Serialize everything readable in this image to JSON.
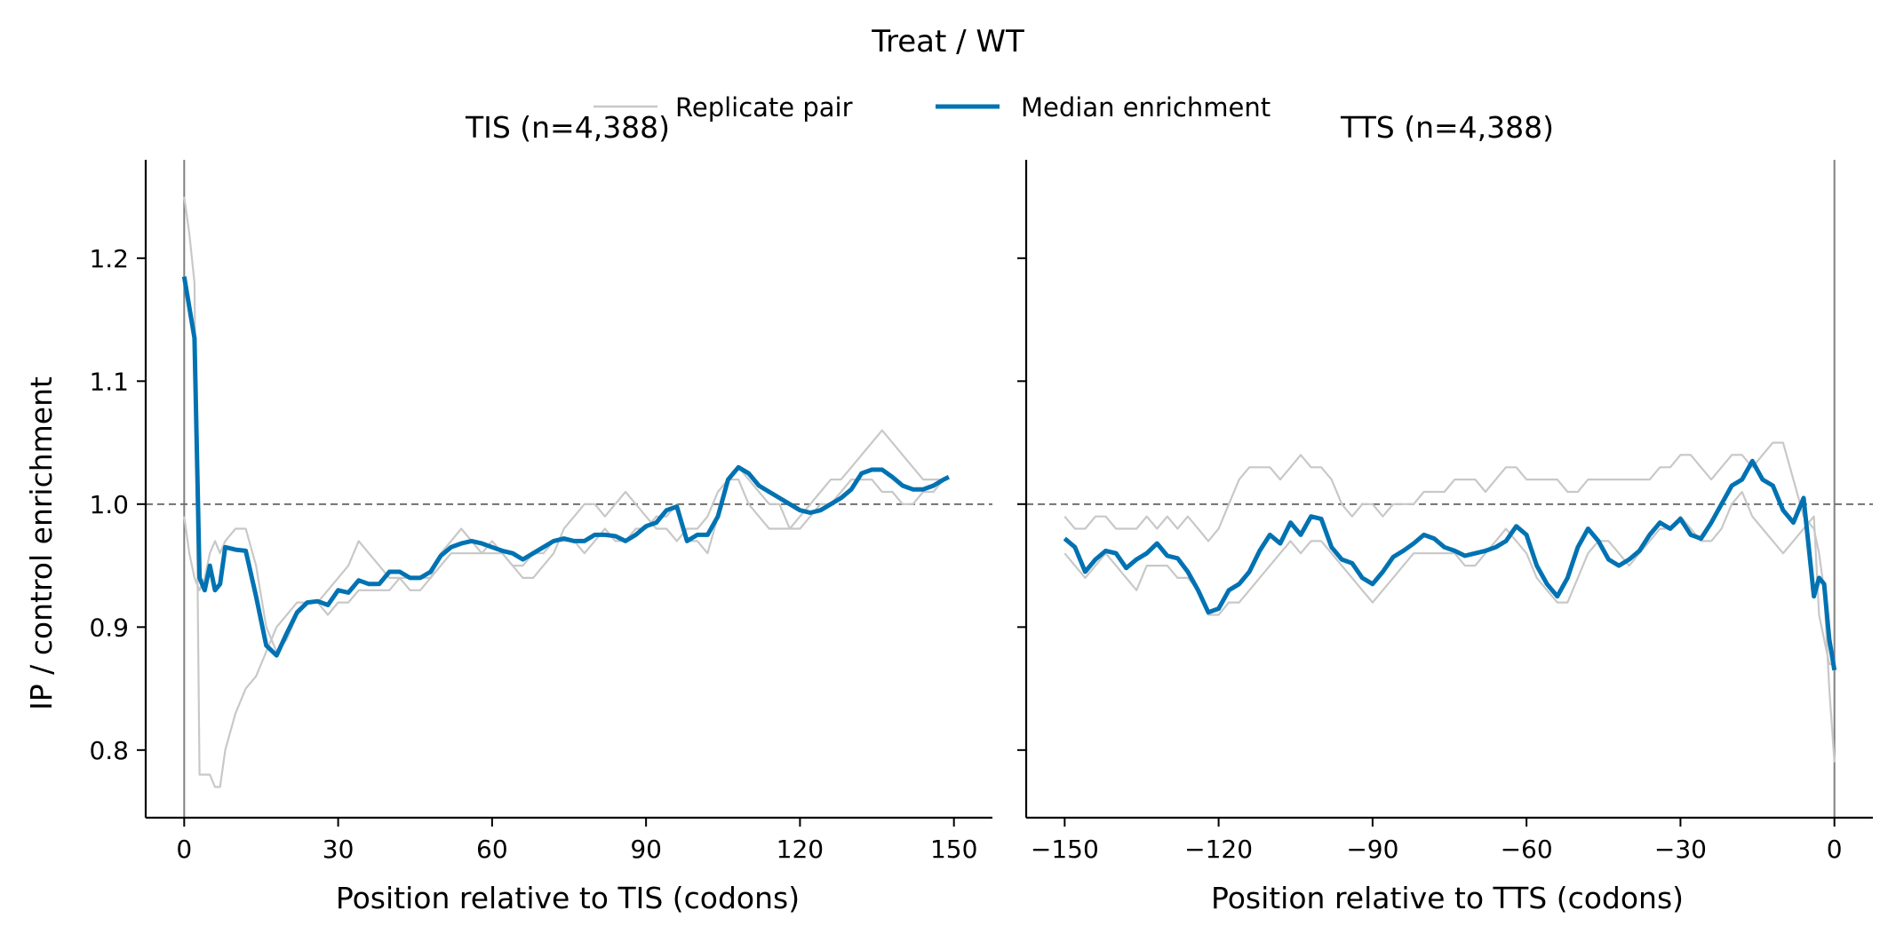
{
  "figure": {
    "suptitle": "Treat / WT",
    "ylabel": "IP / control enrichment",
    "legend": [
      {
        "label": "Replicate pair",
        "color": "#c8c8c8"
      },
      {
        "label": "Median enrichment",
        "color": "#0072b2"
      }
    ]
  },
  "chart_data": [
    {
      "type": "line",
      "title": "TIS (n=4,388)",
      "xlabel": "Position relative to TIS (codons)",
      "ylabel": "IP / control enrichment",
      "xlim": [
        -7.5,
        157.5
      ],
      "ylim": [
        0.745,
        1.28
      ],
      "xticks": [
        0,
        30,
        60,
        90,
        120,
        150
      ],
      "xtick_labels": [
        "0",
        "30",
        "60",
        "90",
        "120",
        "150"
      ],
      "yticks": [
        0.8,
        0.9,
        1.0,
        1.1,
        1.2
      ],
      "ytick_labels": [
        "0.8",
        "0.9",
        "1.0",
        "1.1",
        "1.2"
      ],
      "reference_vline_x": 0,
      "reference_hline_y": 1.0,
      "series": [
        {
          "name": "Replicate pair",
          "color": "#c8c8c8",
          "x": [
            0,
            1,
            2,
            3,
            4,
            5,
            6,
            7,
            8,
            10,
            12,
            14,
            16,
            18,
            20,
            22,
            24,
            26,
            28,
            30,
            32,
            34,
            36,
            38,
            40,
            42,
            44,
            46,
            48,
            50,
            52,
            54,
            56,
            58,
            60,
            62,
            64,
            66,
            68,
            70,
            72,
            74,
            76,
            78,
            80,
            82,
            84,
            86,
            88,
            90,
            92,
            94,
            96,
            98,
            100,
            102,
            104,
            106,
            108,
            110,
            112,
            114,
            116,
            118,
            120,
            122,
            124,
            126,
            128,
            130,
            132,
            134,
            136,
            138,
            140,
            142,
            144,
            146,
            148
          ],
          "y": [
            1.25,
            1.22,
            1.18,
            0.78,
            0.78,
            0.78,
            0.77,
            0.77,
            0.8,
            0.83,
            0.85,
            0.86,
            0.88,
            0.9,
            0.91,
            0.92,
            0.92,
            0.92,
            0.93,
            0.94,
            0.95,
            0.97,
            0.96,
            0.95,
            0.94,
            0.94,
            0.93,
            0.93,
            0.94,
            0.96,
            0.97,
            0.98,
            0.97,
            0.96,
            0.96,
            0.96,
            0.95,
            0.94,
            0.94,
            0.95,
            0.96,
            0.98,
            0.99,
            1.0,
            1.0,
            0.99,
            1.0,
            1.01,
            1.0,
            0.99,
            0.98,
            0.98,
            0.97,
            0.98,
            0.98,
            0.99,
            1.01,
            1.02,
            1.02,
            1.0,
            0.99,
            0.98,
            0.98,
            0.98,
            0.99,
            1.0,
            1.01,
            1.02,
            1.02,
            1.03,
            1.04,
            1.05,
            1.06,
            1.05,
            1.04,
            1.03,
            1.02,
            1.02,
            1.02
          ]
        },
        {
          "name": "Replicate pair",
          "color": "#c8c8c8",
          "x": [
            0,
            1,
            2,
            3,
            4,
            5,
            6,
            7,
            8,
            10,
            12,
            14,
            16,
            18,
            20,
            22,
            24,
            26,
            28,
            30,
            32,
            34,
            36,
            38,
            40,
            42,
            44,
            46,
            48,
            50,
            52,
            54,
            56,
            58,
            60,
            62,
            64,
            66,
            68,
            70,
            72,
            74,
            76,
            78,
            80,
            82,
            84,
            86,
            88,
            90,
            92,
            94,
            96,
            98,
            100,
            102,
            104,
            106,
            108,
            110,
            112,
            114,
            116,
            118,
            120,
            122,
            124,
            126,
            128,
            130,
            132,
            134,
            136,
            138,
            140,
            142,
            144,
            146,
            148
          ],
          "y": [
            0.99,
            0.96,
            0.94,
            0.93,
            0.94,
            0.96,
            0.97,
            0.96,
            0.97,
            0.98,
            0.98,
            0.95,
            0.9,
            0.88,
            0.89,
            0.91,
            0.92,
            0.92,
            0.91,
            0.92,
            0.92,
            0.93,
            0.93,
            0.93,
            0.93,
            0.94,
            0.94,
            0.94,
            0.94,
            0.95,
            0.96,
            0.96,
            0.96,
            0.96,
            0.97,
            0.96,
            0.95,
            0.95,
            0.96,
            0.96,
            0.97,
            0.97,
            0.97,
            0.96,
            0.97,
            0.98,
            0.97,
            0.97,
            0.98,
            0.98,
            0.99,
            0.99,
            1.0,
            0.97,
            0.97,
            0.96,
            0.99,
            1.02,
            1.03,
            1.02,
            1.01,
            1.0,
            1.0,
            0.98,
            0.98,
            0.99,
            1.0,
            1.0,
            1.01,
            1.02,
            1.02,
            1.02,
            1.01,
            1.01,
            1.0,
            1.0,
            1.01,
            1.01,
            1.02
          ]
        },
        {
          "name": "Median enrichment",
          "color": "#0072b2",
          "x": [
            0,
            1,
            2,
            3,
            4,
            5,
            6,
            7,
            8,
            10,
            12,
            14,
            16,
            18,
            20,
            22,
            24,
            26,
            28,
            30,
            32,
            34,
            36,
            38,
            40,
            42,
            44,
            46,
            48,
            50,
            52,
            54,
            56,
            58,
            60,
            62,
            64,
            66,
            68,
            70,
            72,
            74,
            76,
            78,
            80,
            82,
            84,
            86,
            88,
            90,
            92,
            94,
            96,
            98,
            100,
            102,
            104,
            106,
            108,
            110,
            112,
            114,
            116,
            118,
            120,
            122,
            124,
            126,
            128,
            130,
            132,
            134,
            136,
            138,
            140,
            142,
            144,
            146,
            148,
            149
          ],
          "y": [
            1.185,
            1.16,
            1.135,
            0.94,
            0.93,
            0.95,
            0.93,
            0.935,
            0.965,
            0.963,
            0.962,
            0.925,
            0.885,
            0.877,
            0.895,
            0.912,
            0.92,
            0.921,
            0.918,
            0.93,
            0.928,
            0.938,
            0.935,
            0.935,
            0.945,
            0.945,
            0.94,
            0.94,
            0.945,
            0.958,
            0.965,
            0.968,
            0.97,
            0.968,
            0.965,
            0.962,
            0.96,
            0.955,
            0.96,
            0.965,
            0.97,
            0.972,
            0.97,
            0.97,
            0.975,
            0.975,
            0.974,
            0.97,
            0.975,
            0.982,
            0.985,
            0.995,
            0.998,
            0.97,
            0.975,
            0.975,
            0.99,
            1.02,
            1.03,
            1.025,
            1.015,
            1.01,
            1.005,
            1.0,
            0.995,
            0.993,
            0.995,
            1.0,
            1.005,
            1.012,
            1.025,
            1.028,
            1.028,
            1.022,
            1.015,
            1.012,
            1.012,
            1.015,
            1.02,
            1.022
          ]
        }
      ]
    },
    {
      "type": "line",
      "title": "TTS (n=4,388)",
      "xlabel": "Position relative to TTS (codons)",
      "ylabel": "",
      "xlim": [
        -157.5,
        7.5
      ],
      "ylim": [
        0.745,
        1.28
      ],
      "xticks": [
        -150,
        -120,
        -90,
        -60,
        -30,
        0
      ],
      "xtick_labels": [
        "−150",
        "−120",
        "−90",
        "−60",
        "−30",
        "0"
      ],
      "yticks": [
        0.8,
        0.9,
        1.0,
        1.1,
        1.2
      ],
      "ytick_labels": [
        "",
        "",
        "",
        "",
        ""
      ],
      "reference_vline_x": 0,
      "reference_hline_y": 1.0,
      "series": [
        {
          "name": "Replicate pair",
          "color": "#c8c8c8",
          "x": [
            -150,
            -148,
            -146,
            -144,
            -142,
            -140,
            -138,
            -136,
            -134,
            -132,
            -130,
            -128,
            -126,
            -124,
            -122,
            -120,
            -118,
            -116,
            -114,
            -112,
            -110,
            -108,
            -106,
            -104,
            -102,
            -100,
            -98,
            -96,
            -94,
            -92,
            -90,
            -88,
            -86,
            -84,
            -82,
            -80,
            -78,
            -76,
            -74,
            -72,
            -70,
            -68,
            -66,
            -64,
            -62,
            -60,
            -58,
            -56,
            -54,
            -52,
            -50,
            -48,
            -46,
            -44,
            -42,
            -40,
            -38,
            -36,
            -34,
            -32,
            -30,
            -28,
            -26,
            -24,
            -22,
            -20,
            -18,
            -16,
            -14,
            -12,
            -10,
            -8,
            -6,
            -4,
            -3,
            -2,
            -1,
            0
          ],
          "y": [
            0.99,
            0.98,
            0.98,
            0.99,
            0.99,
            0.98,
            0.98,
            0.98,
            0.99,
            0.98,
            0.99,
            0.98,
            0.99,
            0.98,
            0.97,
            0.98,
            1.0,
            1.02,
            1.03,
            1.03,
            1.03,
            1.02,
            1.03,
            1.04,
            1.03,
            1.03,
            1.02,
            1.0,
            0.99,
            1.0,
            1.0,
            0.99,
            1.0,
            1.0,
            1.0,
            1.01,
            1.01,
            1.01,
            1.02,
            1.02,
            1.02,
            1.01,
            1.02,
            1.03,
            1.03,
            1.02,
            1.02,
            1.02,
            1.02,
            1.01,
            1.01,
            1.02,
            1.02,
            1.02,
            1.02,
            1.02,
            1.02,
            1.02,
            1.03,
            1.03,
            1.04,
            1.04,
            1.03,
            1.02,
            1.03,
            1.04,
            1.04,
            1.03,
            1.04,
            1.05,
            1.05,
            1.02,
            0.99,
            0.98,
            0.96,
            0.93,
            0.85,
            0.79
          ]
        },
        {
          "name": "Replicate pair",
          "color": "#c8c8c8",
          "x": [
            -150,
            -148,
            -146,
            -144,
            -142,
            -140,
            -138,
            -136,
            -134,
            -132,
            -130,
            -128,
            -126,
            -124,
            -122,
            -120,
            -118,
            -116,
            -114,
            -112,
            -110,
            -108,
            -106,
            -104,
            -102,
            -100,
            -98,
            -96,
            -94,
            -92,
            -90,
            -88,
            -86,
            -84,
            -82,
            -80,
            -78,
            -76,
            -74,
            -72,
            -70,
            -68,
            -66,
            -64,
            -62,
            -60,
            -58,
            -56,
            -54,
            -52,
            -50,
            -48,
            -46,
            -44,
            -42,
            -40,
            -38,
            -36,
            -34,
            -32,
            -30,
            -28,
            -26,
            -24,
            -22,
            -20,
            -18,
            -16,
            -14,
            -12,
            -10,
            -8,
            -6,
            -4,
            -3,
            -2,
            -1,
            0
          ],
          "y": [
            0.96,
            0.95,
            0.94,
            0.95,
            0.96,
            0.95,
            0.94,
            0.93,
            0.95,
            0.95,
            0.95,
            0.94,
            0.94,
            0.93,
            0.91,
            0.91,
            0.92,
            0.92,
            0.93,
            0.94,
            0.95,
            0.96,
            0.97,
            0.96,
            0.97,
            0.97,
            0.96,
            0.95,
            0.94,
            0.93,
            0.92,
            0.93,
            0.94,
            0.95,
            0.96,
            0.96,
            0.96,
            0.96,
            0.96,
            0.95,
            0.95,
            0.96,
            0.97,
            0.98,
            0.97,
            0.96,
            0.94,
            0.93,
            0.92,
            0.92,
            0.94,
            0.96,
            0.97,
            0.97,
            0.96,
            0.95,
            0.96,
            0.97,
            0.98,
            0.98,
            0.99,
            0.98,
            0.97,
            0.97,
            0.98,
            1.0,
            1.01,
            0.99,
            0.98,
            0.97,
            0.96,
            0.97,
            0.98,
            0.99,
            0.91,
            0.89,
            0.87,
            0.87
          ]
        },
        {
          "name": "Median enrichment",
          "color": "#0072b2",
          "x": [
            -150,
            -148,
            -146,
            -144,
            -142,
            -140,
            -138,
            -136,
            -134,
            -132,
            -130,
            -128,
            -126,
            -124,
            -122,
            -120,
            -118,
            -116,
            -114,
            -112,
            -110,
            -108,
            -106,
            -104,
            -102,
            -100,
            -98,
            -96,
            -94,
            -92,
            -90,
            -88,
            -86,
            -84,
            -82,
            -80,
            -78,
            -76,
            -74,
            -72,
            -70,
            -68,
            -66,
            -64,
            -62,
            -60,
            -58,
            -56,
            -54,
            -52,
            -50,
            -48,
            -46,
            -44,
            -42,
            -40,
            -38,
            -36,
            -34,
            -32,
            -30,
            -28,
            -26,
            -24,
            -22,
            -20,
            -18,
            -16,
            -14,
            -12,
            -10,
            -8,
            -6,
            -4,
            -3,
            -2,
            -1,
            0
          ],
          "y": [
            0.972,
            0.965,
            0.945,
            0.955,
            0.962,
            0.96,
            0.948,
            0.955,
            0.96,
            0.968,
            0.958,
            0.956,
            0.945,
            0.93,
            0.912,
            0.915,
            0.93,
            0.935,
            0.945,
            0.962,
            0.975,
            0.968,
            0.985,
            0.975,
            0.99,
            0.988,
            0.965,
            0.955,
            0.952,
            0.94,
            0.935,
            0.945,
            0.957,
            0.962,
            0.968,
            0.975,
            0.972,
            0.965,
            0.962,
            0.958,
            0.96,
            0.962,
            0.965,
            0.97,
            0.982,
            0.975,
            0.95,
            0.935,
            0.925,
            0.94,
            0.965,
            0.98,
            0.97,
            0.955,
            0.95,
            0.955,
            0.962,
            0.975,
            0.985,
            0.98,
            0.988,
            0.975,
            0.972,
            0.985,
            1.0,
            1.015,
            1.02,
            1.035,
            1.02,
            1.015,
            0.995,
            0.985,
            1.005,
            0.925,
            0.94,
            0.935,
            0.89,
            0.865
          ]
        }
      ]
    }
  ]
}
